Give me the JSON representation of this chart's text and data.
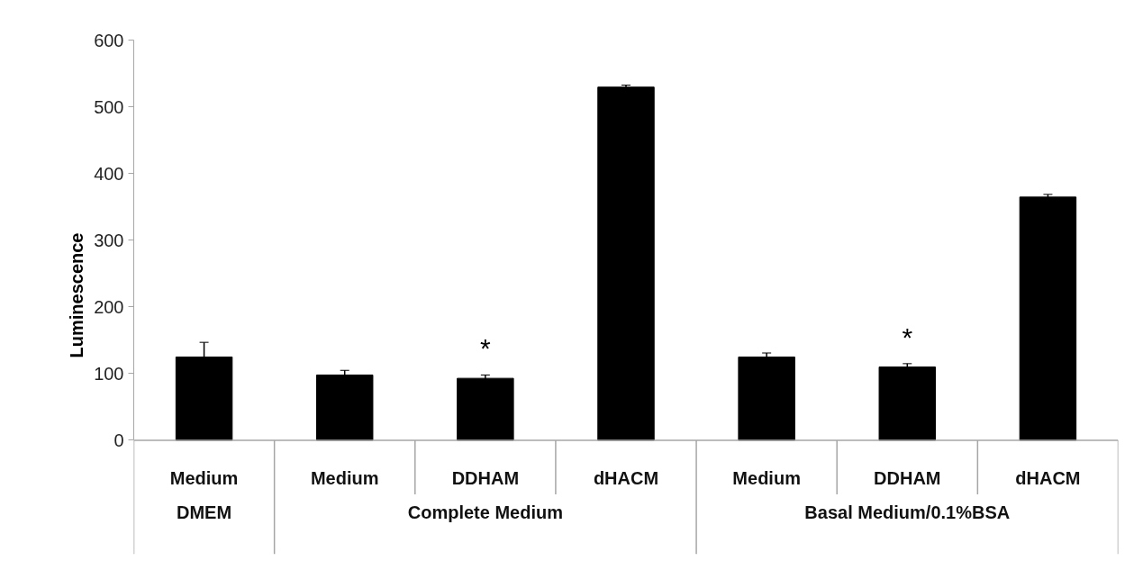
{
  "chart_data": {
    "type": "bar",
    "ylabel": "Luminescence",
    "categories": [
      "Medium",
      "Medium",
      "DDHAM",
      "dHACM",
      "Medium",
      "DDHAM",
      "dHACM"
    ],
    "values": [
      125,
      98,
      93,
      530,
      125,
      110,
      365
    ],
    "errors": [
      22,
      7,
      5,
      3,
      6,
      5,
      4
    ],
    "value_labels": [
      null,
      null,
      "*",
      null,
      null,
      "*",
      null
    ],
    "color": "#000000",
    "ylim": [
      0,
      600
    ],
    "yticks": [
      0,
      100,
      200,
      300,
      400,
      500,
      600
    ],
    "grid": false,
    "annotations": [
      "DMEM",
      "Complete Medium",
      "Basal Medium/0.1%BSA"
    ]
  }
}
